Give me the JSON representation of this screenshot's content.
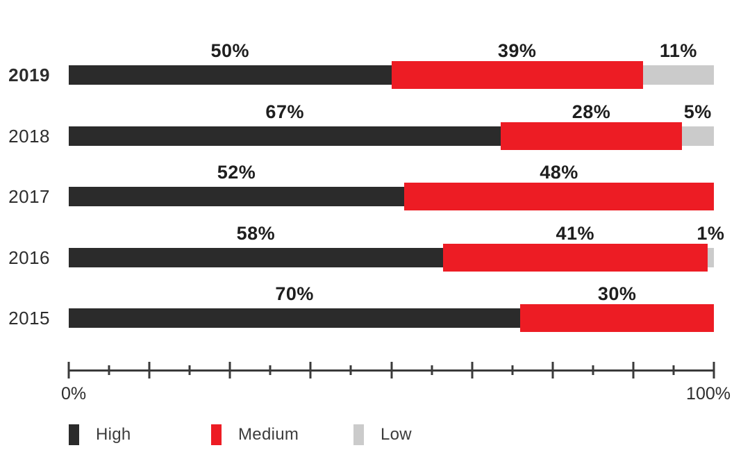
{
  "page": {
    "background": "#ffffff"
  },
  "chart_data": {
    "type": "bar",
    "orientation": "horizontal",
    "stacked": true,
    "title": "",
    "categories": [
      "2019",
      "2018",
      "2017",
      "2016",
      "2015"
    ],
    "series": [
      {
        "name": "High",
        "color": "#2b2b2b",
        "values": [
          50,
          67,
          52,
          58,
          70
        ]
      },
      {
        "name": "Medium",
        "color": "#ed1c24",
        "values": [
          39,
          28,
          48,
          41,
          30
        ]
      },
      {
        "name": "Low",
        "color": "#cbcbcb",
        "values": [
          11,
          5,
          0,
          1,
          0
        ]
      }
    ],
    "data_label_format": "{v}%",
    "xlim": [
      0,
      100
    ],
    "axis": {
      "min_label": "0%",
      "max_label": "100%",
      "tick_count": 17
    },
    "legend": {
      "position": "bottom-left",
      "entries": [
        "High",
        "Medium",
        "Low"
      ]
    },
    "emphasized_category": "2019",
    "grid": false
  }
}
